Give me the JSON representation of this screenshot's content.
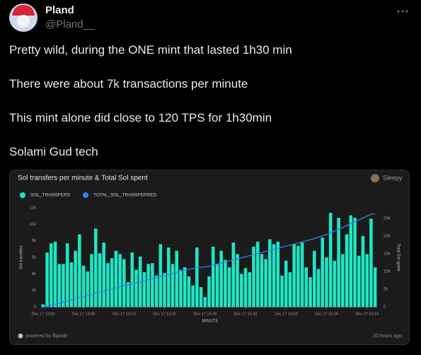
{
  "author": {
    "name": "Pland",
    "handle": "@Pland__"
  },
  "tweet": {
    "lines": [
      "Pretty wild, during the ONE mint that lasted 1h30 min",
      "There were about 7k transactions per minute",
      "This mint alone did close to 120 TPS for 1h30min",
      "Solami Gud tech"
    ]
  },
  "card": {
    "brand": "Sleepy",
    "source": "powered by flipside",
    "time": "20 hours ago"
  },
  "chart_data": {
    "type": "bar",
    "title": "Sol transfers per minute & Total Sol spent",
    "x_label": "MINUTE",
    "y_label": "Sol transfers",
    "y2_label": "Total Sol spent",
    "categories": [
      "Dec 17 13:59",
      null,
      null,
      null,
      null,
      null,
      null,
      null,
      null,
      null,
      "Dec 17 14:09",
      null,
      null,
      null,
      null,
      null,
      null,
      null,
      null,
      null,
      "Dec 17 14:19",
      null,
      null,
      null,
      null,
      null,
      null,
      null,
      null,
      null,
      "Dec 17 14:29",
      null,
      null,
      null,
      null,
      null,
      null,
      null,
      null,
      null,
      "Dec 17 14:39",
      null,
      null,
      null,
      null,
      null,
      null,
      null,
      null,
      null,
      "Dec 17 14:49",
      null,
      null,
      null,
      null,
      null,
      null,
      null,
      null,
      null,
      "Dec 17 14:59",
      null,
      null,
      null,
      null,
      null,
      null,
      null,
      null,
      null,
      "Dec 17 15:09",
      null,
      null,
      null,
      null,
      null,
      null,
      null,
      null,
      null,
      "Dec 17 15:19",
      null,
      null
    ],
    "series": [
      {
        "name": "SOL_TRANSFERS",
        "color": "#1ee6c5",
        "type": "bar",
        "values": [
          300,
          6600,
          7700,
          7900,
          5200,
          5200,
          7700,
          5400,
          6800,
          8800,
          5000,
          4300,
          6400,
          9500,
          6500,
          7800,
          5300,
          5900,
          6800,
          6400,
          5800,
          3000,
          6600,
          4500,
          6100,
          4200,
          5200,
          5300,
          3800,
          7600,
          4100,
          7200,
          5200,
          6800,
          4500,
          4800,
          3700,
          2600,
          7200,
          2400,
          1200,
          3700,
          7300,
          5200,
          6800,
          5700,
          4800,
          7800,
          6400,
          4000,
          4700,
          4200,
          7300,
          7900,
          6400,
          5800,
          8200,
          7600,
          7900,
          3800,
          5600,
          4200,
          7600,
          7400,
          7800,
          4800,
          3600,
          6800,
          4600,
          8400,
          6000,
          11400,
          5600,
          10800,
          6400,
          8800,
          11100,
          10800,
          6200,
          8600,
          6400,
          10700,
          4800
        ]
      },
      {
        "name": "TOTAL_SOL_TRANSFERRED",
        "color": "#2f80ed",
        "type": "line",
        "axis": "y2",
        "values": [
          0,
          200,
          500,
          800,
          1100,
          1400,
          1700,
          2000,
          2300,
          2600,
          2900,
          3200,
          3500,
          3900,
          4200,
          4500,
          4800,
          5100,
          5400,
          5700,
          6000,
          6200,
          6500,
          6800,
          7100,
          7400,
          7700,
          8000,
          8300,
          8600,
          8900,
          9200,
          9500,
          9800,
          10100,
          10400,
          10600,
          10800,
          11100,
          11200,
          11300,
          11500,
          11800,
          12100,
          12400,
          12700,
          13000,
          13300,
          13600,
          13900,
          14200,
          14500,
          14800,
          15100,
          15400,
          15700,
          16000,
          16300,
          16600,
          16900,
          17200,
          17500,
          17800,
          18100,
          18400,
          18700,
          19000,
          19300,
          19700,
          20100,
          20500,
          20900,
          21500,
          22000,
          22500,
          23000,
          23600,
          24100,
          24600,
          25100,
          25700,
          26200,
          26300
        ]
      }
    ],
    "ylim": [
      0,
      12000
    ],
    "yticks": [
      0,
      {
        "value": 2000,
        "label": "2k"
      },
      {
        "value": 4000,
        "label": "4k"
      },
      {
        "value": 6000,
        "label": "6k"
      },
      {
        "value": 8000,
        "label": "8k"
      },
      {
        "value": 10000,
        "label": "10k"
      },
      {
        "value": 12000,
        "label": "12k"
      }
    ],
    "y2lim": [
      0,
      28000
    ],
    "y2ticks": [
      0,
      {
        "value": 5000,
        "label": "5k"
      },
      {
        "value": 10000,
        "label": "10k"
      },
      {
        "value": 15000,
        "label": "15k"
      },
      {
        "value": 20000,
        "label": "20k"
      },
      {
        "value": 25000,
        "label": "25k"
      }
    ]
  }
}
